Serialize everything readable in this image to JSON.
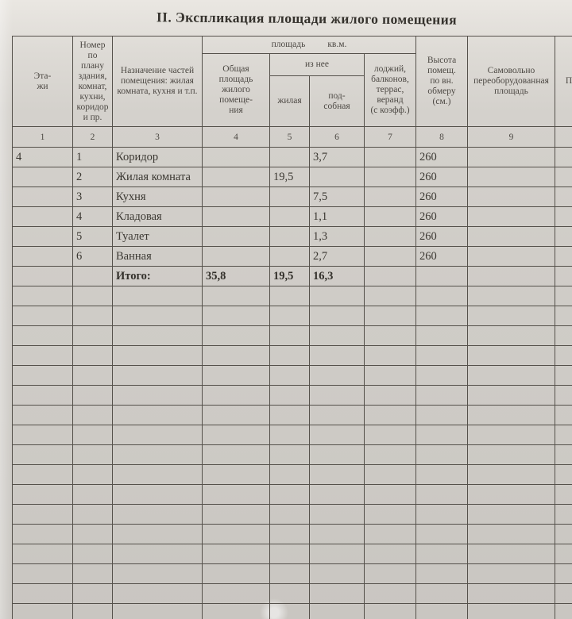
{
  "page": {
    "title": "II. Экспликация площади жилого помещения"
  },
  "table": {
    "header": {
      "floors": "Эта-\nжи",
      "plan_number": "Номер\nпо\nплану\nздания,\nкомнат,\nкухни,\nкоридор\nи пр.",
      "purpose": "Назначение частей\nпомещения: жилая\nкомната, кухня и т.п.",
      "area_group_label": "площадь",
      "area_unit": "кв.м.",
      "total_area": "Общая\nплощадь\nжилого\nпомеще-\nния",
      "of_it": "из нее",
      "living": "жилая",
      "auxiliary": "под-\nсобная",
      "loggias": "лоджий,\nбалконов,\nтеррас,\nверанд\n(с коэфф.)",
      "height": "Высота\nпомещ.\nпо вн.\nобмеру\n(см.)",
      "unauthorized": "Самовольно\nпереоборудованная\nплощадь",
      "note": "При",
      "numbers": [
        "1",
        "2",
        "3",
        "4",
        "5",
        "6",
        "7",
        "8",
        "9"
      ]
    },
    "rows": [
      {
        "floor": "4",
        "num": "1",
        "name": "Коридор",
        "total_area": "",
        "living": "",
        "auxiliary": "3,7",
        "loggias": "",
        "height": "260",
        "unauthorized": "",
        "note": ""
      },
      {
        "floor": "",
        "num": "2",
        "name": "Жилая комната",
        "total_area": "",
        "living": "19,5",
        "auxiliary": "",
        "loggias": "",
        "height": "260",
        "unauthorized": "",
        "note": ""
      },
      {
        "floor": "",
        "num": "3",
        "name": "Кухня",
        "total_area": "",
        "living": "",
        "auxiliary": "7,5",
        "loggias": "",
        "height": "260",
        "unauthorized": "",
        "note": ""
      },
      {
        "floor": "",
        "num": "4",
        "name": "Кладовая",
        "total_area": "",
        "living": "",
        "auxiliary": "1,1",
        "loggias": "",
        "height": "260",
        "unauthorized": "",
        "note": ""
      },
      {
        "floor": "",
        "num": "5",
        "name": "Туалет",
        "total_area": "",
        "living": "",
        "auxiliary": "1,3",
        "loggias": "",
        "height": "260",
        "unauthorized": "",
        "note": ""
      },
      {
        "floor": "",
        "num": "6",
        "name": "Ванная",
        "total_area": "",
        "living": "",
        "auxiliary": "2,7",
        "loggias": "",
        "height": "260",
        "unauthorized": "",
        "note": ""
      }
    ],
    "total": {
      "label": "Итого:",
      "total_area": "35,8",
      "living": "19,5",
      "auxiliary": "16,3"
    },
    "empty_row_count": 17,
    "colors": {
      "paper": "#d0cdc8",
      "line": "#55514b",
      "ink": "#3b3832"
    }
  }
}
